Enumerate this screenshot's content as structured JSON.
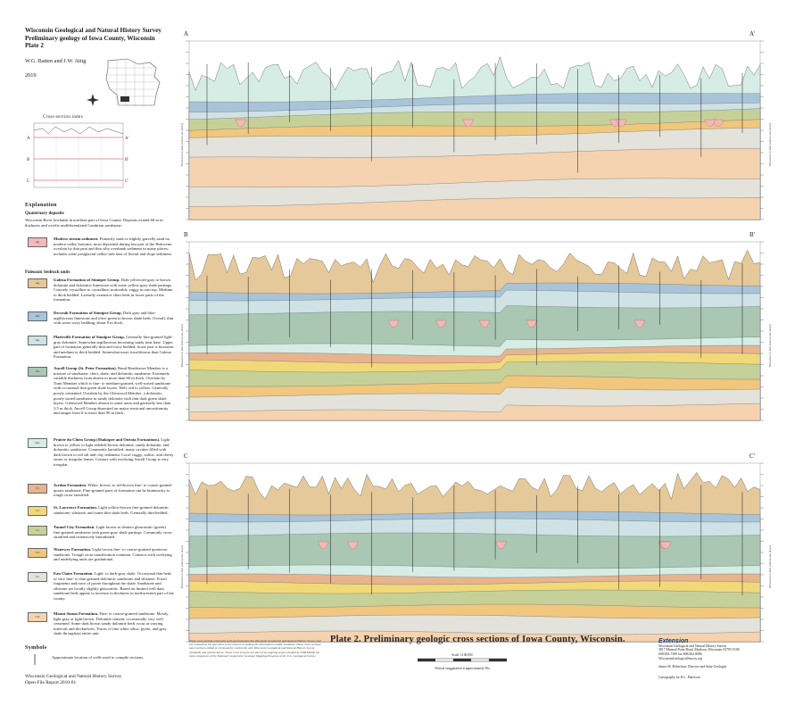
{
  "header": {
    "title_lines": [
      "Wisconsin Geological and Natural History Survey",
      "Preliminary geology of Iowa County, Wisconsin",
      "Plate 2"
    ],
    "authors": "W.G. Batten and J.W. Attig",
    "year": "2010"
  },
  "index_map": {
    "title": "Cross-section index",
    "labels": [
      "A",
      "A'",
      "B",
      "B'",
      "C",
      "C'"
    ]
  },
  "explanation": {
    "heading": "Explanation",
    "quaternary_heading": "Quaternary deposits",
    "quaternary_text": "Wisconsin River lowlands in northern part of Iowa County. Deposits extend 60 m in thickness and overlie undifferentiated Cambrian sandstone.",
    "paleozoic_heading": "Paleozoic bedrock units",
    "units": [
      {
        "code": "Qa",
        "color": "#f4b8b8",
        "name": "Modern stream sediment.",
        "text": "Primarily sand or slightly gravelly sand on modern valley bottoms; most deposited during last part of the Holocene; overlain by thin peat and thin silty overbank sediment in many places; includes some postglacial valley-side fans of fluvial and slope sediment."
      },
      {
        "code": "Og",
        "color": "#e5c99a",
        "name": "Galena Formation of Sinnipee Group.",
        "text": "Drab yellowish-gray to brown dolomite and dolomitic limestone with some yellow-gray shale partings. Coarsely crystalline to crystalline; noticeably vuggy in outcrop. Medium to thick bedded. Laterally extensive chert beds in lower parts of the formation."
      },
      {
        "code": "Od",
        "color": "#a8c4d8",
        "name": "Decorah Formation of Sinnipee Group.",
        "text": "Dark gray and blue-argillaceous limestone and olive-green to brown shale beds. Overall, thin with some wavy bedding, about 9 m thick."
      },
      {
        "code": "Op",
        "color": "#cfe3e6",
        "name": "Platteville Formation of Sinnipee Group.",
        "text": "Generally fine-grained light-gray dolomite. Somewhat argillaceous becoming sandy near base. Upper part of formation generally thin and wavy bedded; lower part is brownest and medium to thick bedded. Somewhat more fossiliferous than Galena Formation."
      },
      {
        "code": "Oa",
        "color": "#a9c7b3",
        "name": "Ancell Group (St. Peter Formation).",
        "text": "Basal Readstown Member is a mixture of sandstone, chert, shale, and dolomitic sandstone. Extremely variable thickness from absent to more than 60 m thick. Overlain by Tonti Member which is fine- to medium-grained, well-sorted sandstone with occasional thin green shale layers. Well, red to yellow. Generally poorly cemented. Overlain by the Glenwood Member, a dolomitic, poorly sorted sandstone to sandy dolomite with thin dark green shale layers. Glenwood Member absent in some areas and generally less than 3.5 m thick. Ancell Group deposited on major erosional unconformity and ranges from 0 to more than 90 m thick."
      },
      {
        "code": "Opc",
        "color": "#d6ede5",
        "name": "Prairie du Chien Group (Shakopee and Oneota Formations).",
        "text": "Light brown to yellow to light reddish-brown dolomite, sandy dolomite, and dolomitic sandstone. Commonly karstified; many cavities filled with dark brown to red silt and clay sediment. Local vuggy, oolitic, and cherty zones or irregular lenses. Contact with overlying Ancell Group is very irregular."
      },
      {
        "code": "Cj",
        "color": "#e8b48e",
        "name": "Jordan Formation.",
        "text": "White, brown, to red-brown fine- to coarse-grained quartz sandstone. Fine-grained parts of formation can be hummocky to rough cross-stratified."
      },
      {
        "code": "Cs",
        "color": "#f1d97a",
        "name": "St. Lawrence Formation.",
        "text": "Light yellow-brown fine-grained dolomitic sandstone, siltstone, and some thin shale beds. Generally thin-bedded."
      },
      {
        "code": "Ct",
        "color": "#c6d199",
        "name": "Tunnel City Formation.",
        "text": "Light brown to distinct glauconitic (green) fine-grained sandstone with green-gray shale partings. Commonly cross-stratified and extensively bioturbated."
      },
      {
        "code": "Cw",
        "color": "#f0c77d",
        "name": "Wonewoc Formation.",
        "text": "Light brown fine- to coarse-grained quartzose sandstone. Trough cross-stratification common. Contacts with overlying and underlying units are gradational."
      },
      {
        "code": "Ce",
        "color": "#e3e3dc",
        "name": "Eau Claire Formation.",
        "text": "Light- to dark-gray shale. Occasional thin beds of very fine- to fine-grained dolomitic sandstone and siltstone. Fossil fragments and trace of pyrite throughout the shale. Sandstone and siltstone are locally slightly glauconitic. Based on limited well data, sandstone beds appear to increase in thickness in northwestern part of the county."
      },
      {
        "code": "Cm",
        "color": "#f5d3b0",
        "name": "Mount Simon Formation.",
        "text": "Fine- to coarse-grained sandstone. Mostly light gray or light brown. Dolomite cement, occasionally very well cemented. Some dark brown sandy dolomite beds occur at varying intervals and thicknesses. Traces of fine white silica, pyrite, and gray shale throughout entire unit."
      }
    ],
    "symbols_heading": "Symbols",
    "symbols_text": "Approximate location of wells used to compile sections."
  },
  "ofr": [
    "Wisconsin Geological and Natural History Survey",
    "Open-File Report 2010-01"
  ],
  "sections": [
    {
      "left": "A",
      "right": "A'"
    },
    {
      "left": "B",
      "right": "B'"
    },
    {
      "left": "C",
      "right": "C'"
    }
  ],
  "axis_label": "Elevation in feet (above sea level)",
  "plate_title": "Plate 2. Preliminary geologic cross sections of Iowa County, Wisconsin.",
  "notes": "These cross sections represent work performed by the Wisconsin Geological and Natural History Survey and are released to the open files in the interest of making the information readily available. These cross sections have not been edited or reviewed for conformity with Wisconsin Geological and Natural History Survey standards and nomenclature. These cross sections are part of an ongoing project funded by STATEMAP, the state component of the National Cooperative Geologic Mapping Program of the U.S. Geological Survey.",
  "scale": {
    "text": "Scale 1:100,000",
    "exaggeration": "Vertical exaggeration is approximately 30x"
  },
  "wgnhs": {
    "brand": "Extension",
    "lines": [
      "Wisconsin Geological and Natural History Survey",
      "3817 Mineral Point Road, Madison, Wisconsin 53705-5100",
      "608/263.7389  fax 608/262.8086",
      "WisconsinGeologicalSurvey.org",
      "",
      "James M. Robertson, Director and State Geologist"
    ],
    "carto": "Cartography by D.L. Patterson"
  }
}
